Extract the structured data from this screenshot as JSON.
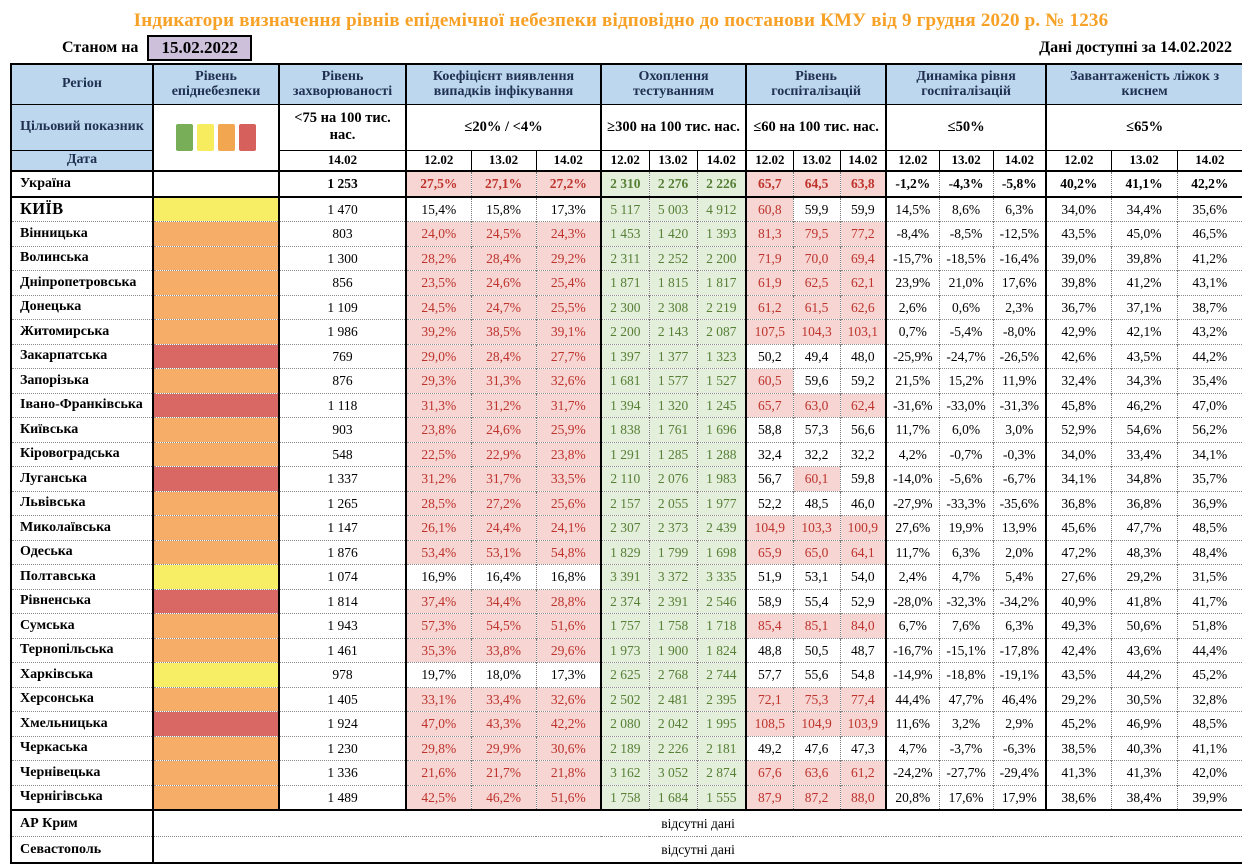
{
  "title": "Індикатори визначення рівнів епідемічної небезпеки відповідно до постанови КМУ від 9 грудня 2020 р. № 1236",
  "as_of_label": "Станом на",
  "as_of_date": "15.02.2022",
  "available_label": "Дані доступні за 14.02.2022",
  "columns": {
    "region": "Регіон",
    "level": "Рівень епіднебезпеки",
    "incidence": "Рівень захворюваності",
    "coef": "Коефіцієнт виявлення випадків інфікування",
    "test": "Охоплення тестуванням",
    "hosp": "Рівень госпіталізацій",
    "dyn": "Динаміка рівня госпіталізацій",
    "beds": "Завантаженість ліжок з киснем"
  },
  "targets": {
    "label": "Цільовий показник",
    "incidence": "<75 на 100 тис. нас.",
    "coef": "≤20% / <4%",
    "test": "≥300 на 100 тис. нас.",
    "hosp": "≤60 на 100 тис. нас.",
    "dyn": "≤50%",
    "beds": "≤65%"
  },
  "date_row": {
    "label": "Дата",
    "incidence_date": "14.02",
    "dates": [
      "12.02",
      "13.02",
      "14.02"
    ]
  },
  "legend_colors": [
    "#79AE58",
    "#F7EC5D",
    "#F3A650",
    "#D6605C"
  ],
  "level_colors": {
    "yellow": "#F8EE66",
    "orange": "#F5AD68",
    "red": "#D96864",
    "none": "#FFFFFF"
  },
  "status_colors": {
    "alert_bg": "#F6D5D3",
    "alert_text": "#BE332C",
    "ok_bg": "#E3EFDB",
    "ok_text": "#567F35",
    "header_bg": "#BDD7EE",
    "title_orange": "#F7A127",
    "date_box_bg": "#CCC0DA"
  },
  "no_data_text": "відсутні дані",
  "rows": [
    {
      "region": "Україна",
      "level": "none",
      "bold": true,
      "incidence": "1 253",
      "coef": [
        "27,5%",
        "27,1%",
        "27,2%"
      ],
      "coef_alert": true,
      "test": [
        "2 310",
        "2 276",
        "2 226"
      ],
      "hosp": [
        "65,7",
        "64,5",
        "63,8"
      ],
      "hosp_alert": [
        true,
        true,
        true
      ],
      "dyn": [
        "-1,2%",
        "-4,3%",
        "-5,8%"
      ],
      "beds": [
        "40,2%",
        "41,1%",
        "42,2%"
      ]
    },
    {
      "region": "КИЇВ",
      "caps": true,
      "level": "yellow",
      "incidence": "1 470",
      "coef": [
        "15,4%",
        "15,8%",
        "17,3%"
      ],
      "coef_alert": false,
      "test": [
        "5 117",
        "5 003",
        "4 912"
      ],
      "hosp": [
        "60,8",
        "59,9",
        "59,9"
      ],
      "hosp_alert": [
        true,
        false,
        false
      ],
      "dyn": [
        "14,5%",
        "8,6%",
        "6,3%"
      ],
      "beds": [
        "34,0%",
        "34,4%",
        "35,6%"
      ]
    },
    {
      "region": "Вінницька",
      "level": "orange",
      "incidence": "803",
      "coef": [
        "24,0%",
        "24,5%",
        "24,3%"
      ],
      "coef_alert": true,
      "test": [
        "1 453",
        "1 420",
        "1 393"
      ],
      "hosp": [
        "81,3",
        "79,5",
        "77,2"
      ],
      "hosp_alert": [
        true,
        true,
        true
      ],
      "dyn": [
        "-8,4%",
        "-8,5%",
        "-12,5%"
      ],
      "beds": [
        "43,5%",
        "45,0%",
        "46,5%"
      ]
    },
    {
      "region": "Волинська",
      "level": "orange",
      "incidence": "1 300",
      "coef": [
        "28,2%",
        "28,4%",
        "29,2%"
      ],
      "coef_alert": true,
      "test": [
        "2 311",
        "2 252",
        "2 200"
      ],
      "hosp": [
        "71,9",
        "70,0",
        "69,4"
      ],
      "hosp_alert": [
        true,
        true,
        true
      ],
      "dyn": [
        "-15,7%",
        "-18,5%",
        "-16,4%"
      ],
      "beds": [
        "39,0%",
        "39,8%",
        "41,2%"
      ]
    },
    {
      "region": "Дніпропетровська",
      "level": "orange",
      "incidence": "856",
      "coef": [
        "23,5%",
        "24,6%",
        "25,4%"
      ],
      "coef_alert": true,
      "test": [
        "1 871",
        "1 815",
        "1 817"
      ],
      "hosp": [
        "61,9",
        "62,5",
        "62,1"
      ],
      "hosp_alert": [
        true,
        true,
        true
      ],
      "dyn": [
        "23,9%",
        "21,0%",
        "17,6%"
      ],
      "beds": [
        "39,8%",
        "41,2%",
        "43,1%"
      ]
    },
    {
      "region": "Донецька",
      "level": "orange",
      "incidence": "1 109",
      "coef": [
        "24,5%",
        "24,7%",
        "25,5%"
      ],
      "coef_alert": true,
      "test": [
        "2 300",
        "2 308",
        "2 219"
      ],
      "hosp": [
        "61,2",
        "61,5",
        "62,6"
      ],
      "hosp_alert": [
        true,
        true,
        true
      ],
      "dyn": [
        "2,6%",
        "0,6%",
        "2,3%"
      ],
      "beds": [
        "36,7%",
        "37,1%",
        "38,7%"
      ]
    },
    {
      "region": "Житомирська",
      "level": "orange",
      "incidence": "1 986",
      "coef": [
        "39,2%",
        "38,5%",
        "39,1%"
      ],
      "coef_alert": true,
      "test": [
        "2 200",
        "2 143",
        "2 087"
      ],
      "hosp": [
        "107,5",
        "104,3",
        "103,1"
      ],
      "hosp_alert": [
        true,
        true,
        true
      ],
      "dyn": [
        "0,7%",
        "-5,4%",
        "-8,0%"
      ],
      "beds": [
        "42,9%",
        "42,1%",
        "43,2%"
      ]
    },
    {
      "region": "Закарпатська",
      "level": "red",
      "incidence": "769",
      "coef": [
        "29,0%",
        "28,4%",
        "27,7%"
      ],
      "coef_alert": true,
      "test": [
        "1 397",
        "1 377",
        "1 323"
      ],
      "hosp": [
        "50,2",
        "49,4",
        "48,0"
      ],
      "hosp_alert": [
        false,
        false,
        false
      ],
      "dyn": [
        "-25,9%",
        "-24,7%",
        "-26,5%"
      ],
      "beds": [
        "42,6%",
        "43,5%",
        "44,2%"
      ]
    },
    {
      "region": "Запорізька",
      "level": "orange",
      "incidence": "876",
      "coef": [
        "29,3%",
        "31,3%",
        "32,6%"
      ],
      "coef_alert": true,
      "test": [
        "1 681",
        "1 577",
        "1 527"
      ],
      "hosp": [
        "60,5",
        "59,6",
        "59,2"
      ],
      "hosp_alert": [
        true,
        false,
        false
      ],
      "dyn": [
        "21,5%",
        "15,2%",
        "11,9%"
      ],
      "beds": [
        "32,4%",
        "34,3%",
        "35,4%"
      ]
    },
    {
      "region": "Івано-Франківська",
      "level": "red",
      "incidence": "1 118",
      "coef": [
        "31,3%",
        "31,2%",
        "31,7%"
      ],
      "coef_alert": true,
      "test": [
        "1 394",
        "1 320",
        "1 245"
      ],
      "hosp": [
        "65,7",
        "63,0",
        "62,4"
      ],
      "hosp_alert": [
        true,
        true,
        true
      ],
      "dyn": [
        "-31,6%",
        "-33,0%",
        "-31,3%"
      ],
      "beds": [
        "45,8%",
        "46,2%",
        "47,0%"
      ]
    },
    {
      "region": "Київська",
      "level": "orange",
      "incidence": "903",
      "coef": [
        "23,8%",
        "24,6%",
        "25,9%"
      ],
      "coef_alert": true,
      "test": [
        "1 838",
        "1 761",
        "1 696"
      ],
      "hosp": [
        "58,8",
        "57,3",
        "56,6"
      ],
      "hosp_alert": [
        false,
        false,
        false
      ],
      "dyn": [
        "11,7%",
        "6,0%",
        "3,0%"
      ],
      "beds": [
        "52,9%",
        "54,6%",
        "56,2%"
      ]
    },
    {
      "region": "Кіровоградська",
      "level": "orange",
      "incidence": "548",
      "coef": [
        "22,5%",
        "22,9%",
        "23,8%"
      ],
      "coef_alert": true,
      "test": [
        "1 291",
        "1 285",
        "1 288"
      ],
      "hosp": [
        "32,4",
        "32,2",
        "32,2"
      ],
      "hosp_alert": [
        false,
        false,
        false
      ],
      "dyn": [
        "4,2%",
        "-0,7%",
        "-0,3%"
      ],
      "beds": [
        "34,0%",
        "33,4%",
        "34,1%"
      ]
    },
    {
      "region": "Луганська",
      "level": "red",
      "incidence": "1 337",
      "coef": [
        "31,2%",
        "31,7%",
        "33,5%"
      ],
      "coef_alert": true,
      "test": [
        "2 110",
        "2 076",
        "1 983"
      ],
      "hosp": [
        "56,7",
        "60,1",
        "59,8"
      ],
      "hosp_alert": [
        false,
        true,
        false
      ],
      "dyn": [
        "-14,0%",
        "-5,6%",
        "-6,7%"
      ],
      "beds": [
        "34,1%",
        "34,8%",
        "35,7%"
      ]
    },
    {
      "region": "Львівська",
      "level": "orange",
      "incidence": "1 265",
      "coef": [
        "28,5%",
        "27,2%",
        "25,6%"
      ],
      "coef_alert": true,
      "test": [
        "2 157",
        "2 055",
        "1 977"
      ],
      "hosp": [
        "52,2",
        "48,5",
        "46,0"
      ],
      "hosp_alert": [
        false,
        false,
        false
      ],
      "dyn": [
        "-27,9%",
        "-33,3%",
        "-35,6%"
      ],
      "beds": [
        "36,8%",
        "36,8%",
        "36,9%"
      ]
    },
    {
      "region": "Миколаївська",
      "level": "orange",
      "incidence": "1 147",
      "coef": [
        "26,1%",
        "24,4%",
        "24,1%"
      ],
      "coef_alert": true,
      "test": [
        "2 307",
        "2 373",
        "2 439"
      ],
      "hosp": [
        "104,9",
        "103,3",
        "100,9"
      ],
      "hosp_alert": [
        true,
        true,
        true
      ],
      "dyn": [
        "27,6%",
        "19,9%",
        "13,9%"
      ],
      "beds": [
        "45,6%",
        "47,7%",
        "48,5%"
      ]
    },
    {
      "region": "Одеська",
      "level": "orange",
      "incidence": "1 876",
      "coef": [
        "53,4%",
        "53,1%",
        "54,8%"
      ],
      "coef_alert": true,
      "test": [
        "1 829",
        "1 799",
        "1 698"
      ],
      "hosp": [
        "65,9",
        "65,0",
        "64,1"
      ],
      "hosp_alert": [
        true,
        true,
        true
      ],
      "dyn": [
        "11,7%",
        "6,3%",
        "2,0%"
      ],
      "beds": [
        "47,2%",
        "48,3%",
        "48,4%"
      ]
    },
    {
      "region": "Полтавська",
      "level": "yellow",
      "incidence": "1 074",
      "coef": [
        "16,9%",
        "16,4%",
        "16,8%"
      ],
      "coef_alert": false,
      "test": [
        "3 391",
        "3 372",
        "3 335"
      ],
      "hosp": [
        "51,9",
        "53,1",
        "54,0"
      ],
      "hosp_alert": [
        false,
        false,
        false
      ],
      "dyn": [
        "2,4%",
        "4,7%",
        "5,4%"
      ],
      "beds": [
        "27,6%",
        "29,2%",
        "31,5%"
      ]
    },
    {
      "region": "Рівненська",
      "level": "red",
      "incidence": "1 814",
      "coef": [
        "37,4%",
        "34,4%",
        "28,8%"
      ],
      "coef_alert": true,
      "test": [
        "2 374",
        "2 391",
        "2 546"
      ],
      "hosp": [
        "58,9",
        "55,4",
        "52,9"
      ],
      "hosp_alert": [
        false,
        false,
        false
      ],
      "dyn": [
        "-28,0%",
        "-32,3%",
        "-34,2%"
      ],
      "beds": [
        "40,9%",
        "41,8%",
        "41,7%"
      ]
    },
    {
      "region": "Сумська",
      "level": "orange",
      "incidence": "1 943",
      "coef": [
        "57,3%",
        "54,5%",
        "51,6%"
      ],
      "coef_alert": true,
      "test": [
        "1 757",
        "1 758",
        "1 718"
      ],
      "hosp": [
        "85,4",
        "85,1",
        "84,0"
      ],
      "hosp_alert": [
        true,
        true,
        true
      ],
      "dyn": [
        "6,7%",
        "7,6%",
        "6,3%"
      ],
      "beds": [
        "49,3%",
        "50,6%",
        "51,8%"
      ]
    },
    {
      "region": "Тернопільська",
      "level": "orange",
      "incidence": "1 461",
      "coef": [
        "35,3%",
        "33,8%",
        "29,6%"
      ],
      "coef_alert": true,
      "test": [
        "1 973",
        "1 900",
        "1 824"
      ],
      "hosp": [
        "48,8",
        "50,5",
        "48,7"
      ],
      "hosp_alert": [
        false,
        false,
        false
      ],
      "dyn": [
        "-16,7%",
        "-15,1%",
        "-17,8%"
      ],
      "beds": [
        "42,4%",
        "43,6%",
        "44,4%"
      ]
    },
    {
      "region": "Харківська",
      "level": "yellow",
      "incidence": "978",
      "coef": [
        "19,7%",
        "18,0%",
        "17,3%"
      ],
      "coef_alert": false,
      "test": [
        "2 625",
        "2 768",
        "2 744"
      ],
      "hosp": [
        "57,7",
        "55,6",
        "54,8"
      ],
      "hosp_alert": [
        false,
        false,
        false
      ],
      "dyn": [
        "-14,9%",
        "-18,8%",
        "-19,1%"
      ],
      "beds": [
        "43,5%",
        "44,2%",
        "45,2%"
      ]
    },
    {
      "region": "Херсонська",
      "level": "orange",
      "incidence": "1 405",
      "coef": [
        "33,1%",
        "33,4%",
        "32,6%"
      ],
      "coef_alert": true,
      "test": [
        "2 502",
        "2 481",
        "2 395"
      ],
      "hosp": [
        "72,1",
        "75,3",
        "77,4"
      ],
      "hosp_alert": [
        true,
        true,
        true
      ],
      "dyn": [
        "44,4%",
        "47,7%",
        "46,4%"
      ],
      "beds": [
        "29,2%",
        "30,5%",
        "32,8%"
      ]
    },
    {
      "region": "Хмельницька",
      "level": "red",
      "incidence": "1 924",
      "coef": [
        "47,0%",
        "43,3%",
        "42,2%"
      ],
      "coef_alert": true,
      "test": [
        "2 080",
        "2 042",
        "1 995"
      ],
      "hosp": [
        "108,5",
        "104,9",
        "103,9"
      ],
      "hosp_alert": [
        true,
        true,
        true
      ],
      "dyn": [
        "11,6%",
        "3,2%",
        "2,9%"
      ],
      "beds": [
        "45,2%",
        "46,9%",
        "48,5%"
      ]
    },
    {
      "region": "Черкаська",
      "level": "orange",
      "incidence": "1 230",
      "coef": [
        "29,8%",
        "29,9%",
        "30,6%"
      ],
      "coef_alert": true,
      "test": [
        "2 189",
        "2 226",
        "2 181"
      ],
      "hosp": [
        "49,2",
        "47,6",
        "47,3"
      ],
      "hosp_alert": [
        false,
        false,
        false
      ],
      "dyn": [
        "4,7%",
        "-3,7%",
        "-6,3%"
      ],
      "beds": [
        "38,5%",
        "40,3%",
        "41,1%"
      ]
    },
    {
      "region": "Чернівецька",
      "level": "orange",
      "incidence": "1 336",
      "coef": [
        "21,6%",
        "21,7%",
        "21,8%"
      ],
      "coef_alert": true,
      "test": [
        "3 162",
        "3 052",
        "2 874"
      ],
      "hosp": [
        "67,6",
        "63,6",
        "61,2"
      ],
      "hosp_alert": [
        true,
        true,
        true
      ],
      "dyn": [
        "-24,2%",
        "-27,7%",
        "-29,4%"
      ],
      "beds": [
        "41,3%",
        "41,3%",
        "42,0%"
      ]
    },
    {
      "region": "Чернігівська",
      "level": "orange",
      "incidence": "1 489",
      "coef": [
        "42,5%",
        "46,2%",
        "51,6%"
      ],
      "coef_alert": true,
      "test": [
        "1 758",
        "1 684",
        "1 555"
      ],
      "hosp": [
        "87,9",
        "87,2",
        "88,0"
      ],
      "hosp_alert": [
        true,
        true,
        true
      ],
      "dyn": [
        "20,8%",
        "17,6%",
        "17,9%"
      ],
      "beds": [
        "38,6%",
        "38,4%",
        "39,9%"
      ]
    }
  ],
  "no_data_rows": [
    {
      "region": "АР Крим"
    },
    {
      "region": "Севастополь"
    }
  ]
}
